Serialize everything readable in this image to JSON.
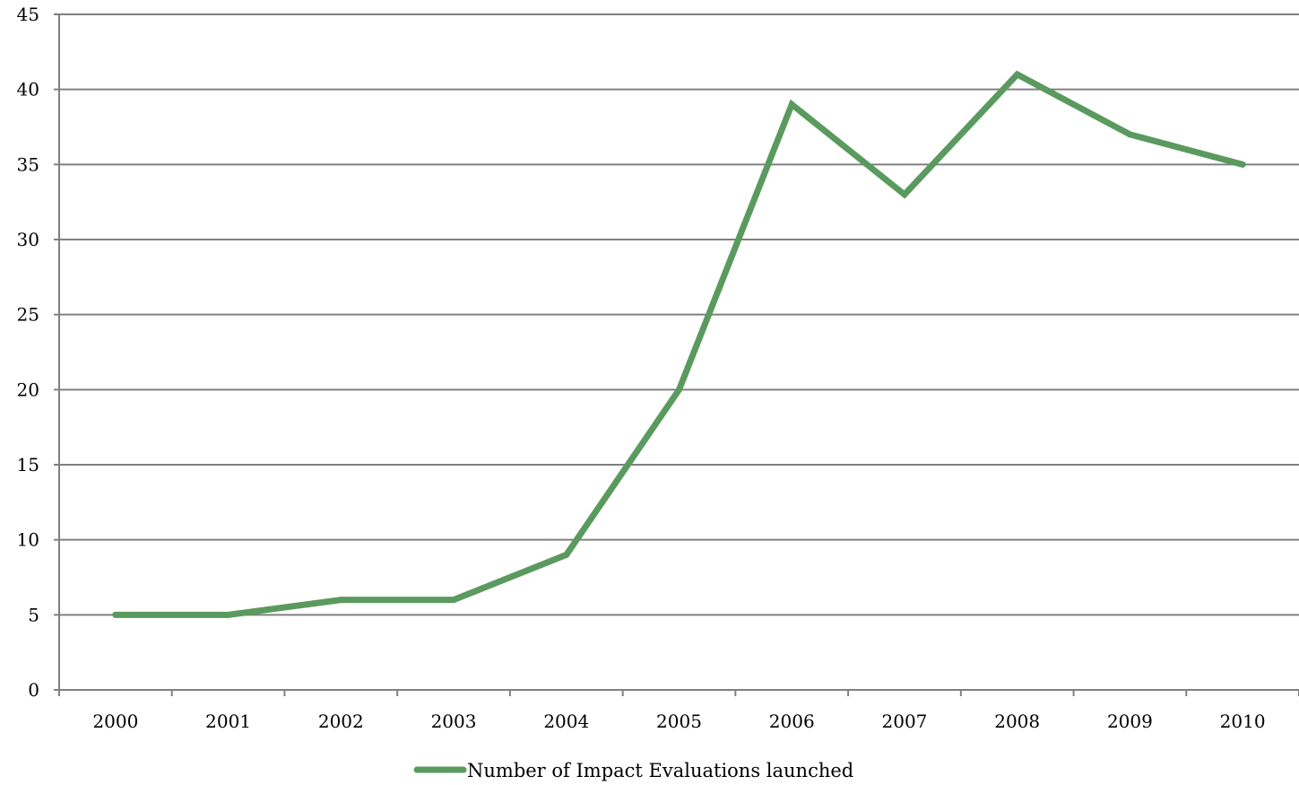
{
  "chart_data": {
    "type": "line",
    "title": "",
    "xlabel": "",
    "ylabel": "",
    "categories": [
      "2000",
      "2001",
      "2002",
      "2003",
      "2004",
      "2005",
      "2006",
      "2007",
      "2008",
      "2009",
      "2010"
    ],
    "series": [
      {
        "name": "Number of Impact Evaluations launched",
        "values": [
          5,
          5,
          6,
          6,
          9,
          20,
          39,
          33,
          41,
          37,
          35
        ],
        "color": "#5a9a5f"
      }
    ],
    "ylim": [
      0,
      45
    ],
    "yticks": [
      "0",
      "5",
      "10",
      "15",
      "20",
      "25",
      "30",
      "35",
      "40",
      "45"
    ],
    "grid": true,
    "legend_position": "bottom-center",
    "colors": {
      "gridline": "#808080",
      "axis": "#808080"
    }
  }
}
